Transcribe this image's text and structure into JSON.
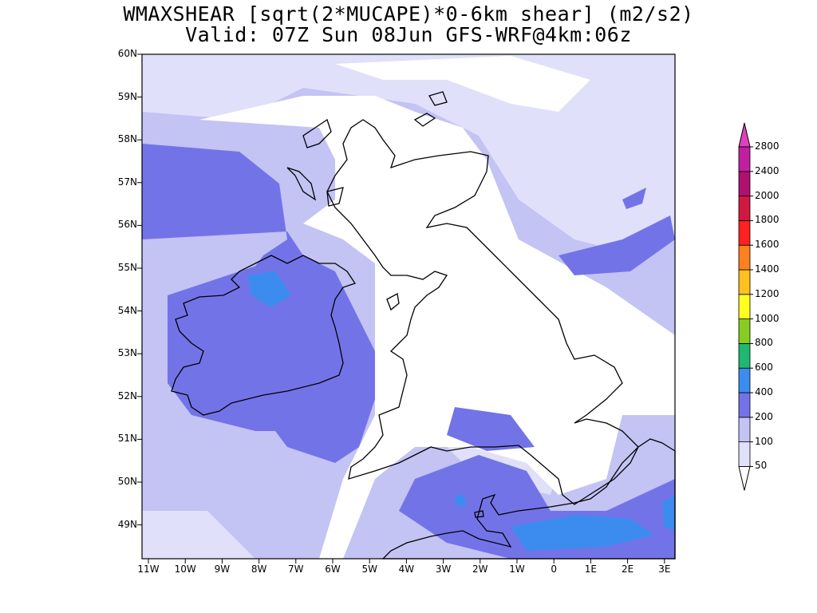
{
  "title": "WMAXSHEAR [sqrt(2*MUCAPE)*0-6km shear] (m2/s2)",
  "subtitle": "Valid: 07Z Sun 08Jun GFS-WRF@4km:06z",
  "map": {
    "lon_range": [
      -11.2,
      3.3
    ],
    "lat_range": [
      48.25,
      60
    ],
    "lat_ticks": [
      "60N",
      "59N",
      "58N",
      "57N",
      "56N",
      "55N",
      "54N",
      "53N",
      "52N",
      "51N",
      "50N",
      "49N"
    ],
    "lon_ticks": [
      "11W",
      "10W",
      "9W",
      "8W",
      "7W",
      "6W",
      "5W",
      "4W",
      "3W",
      "2W",
      "1W",
      "0",
      "1E",
      "2E",
      "3E"
    ],
    "background_color": "#c3c3f4"
  },
  "colorbar": {
    "labels": [
      "50",
      "100",
      "200",
      "400",
      "600",
      "800",
      "1000",
      "1200",
      "1400",
      "1600",
      "1800",
      "2000",
      "2400",
      "2800"
    ],
    "colors": [
      "#ffffff",
      "#e0e0fa",
      "#c3c3f4",
      "#7373e8",
      "#3c8cef",
      "#20b870",
      "#88cc22",
      "#ffff20",
      "#ffc020",
      "#ff8020",
      "#ff2020",
      "#d01840",
      "#b01070",
      "#c020a0",
      "#e040c0"
    ]
  }
}
